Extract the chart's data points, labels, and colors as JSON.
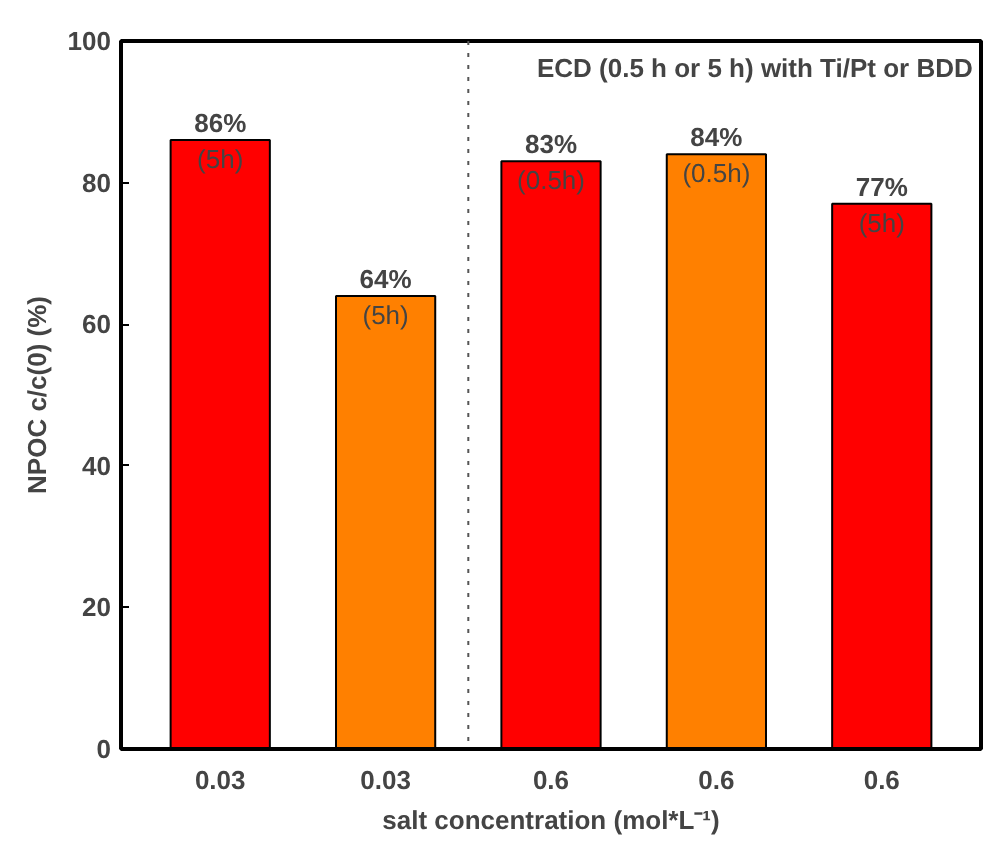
{
  "chart_data": {
    "type": "bar",
    "title": "ECD (0.5 h or 5 h) with Ti/Pt or BDD",
    "xlabel": "salt concentration (mol*L⁻¹)",
    "ylabel": "NPOC c/c(0) (%)",
    "categories": [
      "0.03",
      "0.03",
      "0.6",
      "0.6",
      "0.6"
    ],
    "values": [
      86,
      64,
      83,
      84,
      77
    ],
    "colors": [
      "#ff0000",
      "#ff8000",
      "#ff0000",
      "#ff8000",
      "#ff0000"
    ],
    "value_labels": [
      "86%",
      "64%",
      "83%",
      "84%",
      "77%"
    ],
    "annotations": [
      "(5h)",
      "(5h)",
      "(0.5h)",
      "(0.5h)",
      "(5h)"
    ],
    "ylim": [
      0,
      100
    ],
    "yticks": [
      0,
      20,
      40,
      60,
      80,
      100
    ],
    "grid": false
  }
}
